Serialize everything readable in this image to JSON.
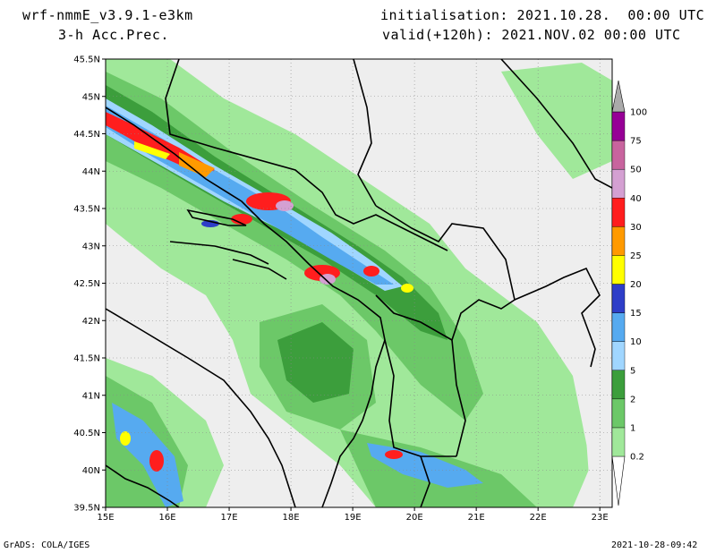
{
  "header": {
    "model": "wrf-nmmE_v3.9.1-e3km",
    "product": "3-h Acc.Prec.",
    "init_line": "initialisation: 2021.10.28.  00:00 UTC",
    "valid_line": "valid(+120h): 2021.NOV.02 00:00 UTC"
  },
  "map": {
    "lat_labels": [
      "45.5N",
      "45N",
      "44.5N",
      "44N",
      "43.5N",
      "43N",
      "42.5N",
      "42N",
      "41.5N",
      "41N",
      "40.5N",
      "40N",
      "39.5N"
    ],
    "lon_labels": [
      "15E",
      "16E",
      "17E",
      "18E",
      "19E",
      "20E",
      "21E",
      "22E",
      "23E"
    ],
    "lat_range": [
      39.5,
      45.5
    ],
    "lon_range": [
      15,
      23.2
    ],
    "grid": true,
    "background_color": "#eeeeee"
  },
  "legend": {
    "levels": [
      "0.2",
      "1",
      "2",
      "5",
      "10",
      "15",
      "20",
      "25",
      "30",
      "40",
      "50",
      "75",
      "100"
    ],
    "colors": [
      "#a0e89a",
      "#6cc868",
      "#3c9e3c",
      "#a0d6ff",
      "#56aaf0",
      "#2e3ec8",
      "#ffff00",
      "#ff9a00",
      "#ff1e1e",
      "#d4a0d2",
      "#c8649e",
      "#960096",
      "#aaaaaa"
    ],
    "placement": "right"
  },
  "footer": {
    "left": "GrADS: COLA/IGES",
    "right": "2021-10-28-09:42"
  }
}
